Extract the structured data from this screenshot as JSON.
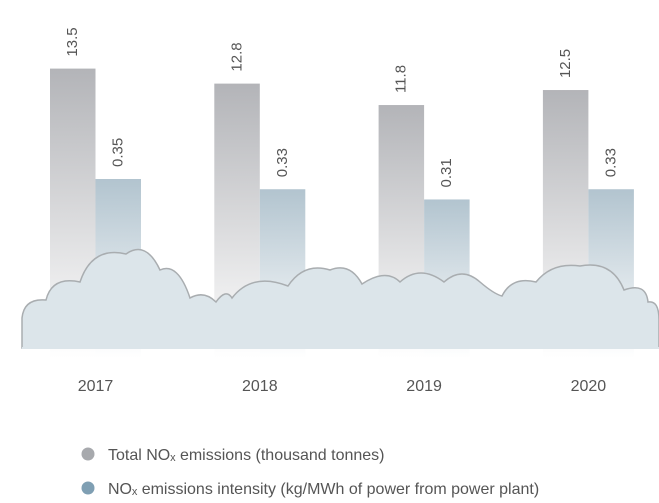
{
  "chart_data": {
    "type": "bar",
    "categories": [
      "2017",
      "2018",
      "2019",
      "2020"
    ],
    "series": [
      {
        "name": "Total NOₓ emissions (thousand tonnes)",
        "color": "#b3b4b8",
        "values": [
          13.5,
          12.8,
          11.8,
          12.5
        ]
      },
      {
        "name": "NOₓ emissions intensity (kg/MWh of power from power plant)",
        "color": "#b2c4cf",
        "values": [
          0.35,
          0.33,
          0.31,
          0.33
        ],
        "axis": "y2"
      }
    ],
    "ylim": [
      0,
      16.7
    ],
    "y2lim": [
      0,
      0.7
    ]
  }
}
